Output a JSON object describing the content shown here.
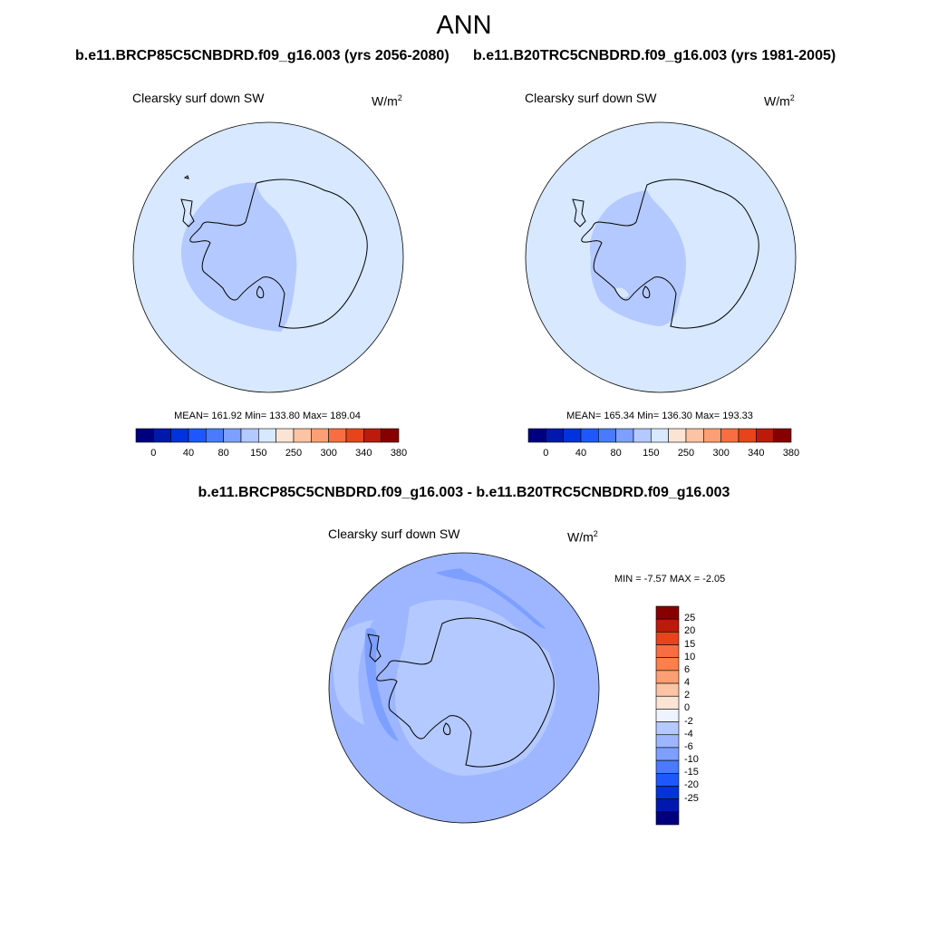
{
  "title": "ANN",
  "panels": [
    {
      "case_title": "b.e11.BRCP85C5CNBDRD.f09_g16.003 (yrs 2056-2080)",
      "variable": "Clearsky surf down SW",
      "units_base": "W/m",
      "units_exp": "2",
      "stats": "MEAN= 161.92  Min= 133.80  Max= 189.04"
    },
    {
      "case_title": "b.e11.B20TRC5CNBDRD.f09_g16.003 (yrs 1981-2005)",
      "variable": "Clearsky surf down SW",
      "units_base": "W/m",
      "units_exp": "2",
      "stats": "MEAN= 165.34  Min= 136.30  Max= 193.33"
    }
  ],
  "colorbar_horizontal": {
    "colors": [
      "#00007f",
      "#0019ad",
      "#0033dd",
      "#1f57ff",
      "#4a7bff",
      "#7d9fff",
      "#b4c9ff",
      "#d7e8ff",
      "#fbe4d4",
      "#fcc4a4",
      "#fc9f74",
      "#f96d43",
      "#e8441c",
      "#bc1a0b",
      "#870000"
    ],
    "tick_labels": [
      "0",
      "40",
      "80",
      "150",
      "250",
      "300",
      "340",
      "380"
    ]
  },
  "diff_panel": {
    "case_title": "b.e11.BRCP85C5CNBDRD.f09_g16.003 - b.e11.B20TRC5CNBDRD.f09_g16.003",
    "variable": "Clearsky surf down SW",
    "units_base": "W/m",
    "units_exp": "2",
    "stats": "MIN =  -7.57 MAX =  -2.05"
  },
  "colorbar_vertical": {
    "colors_top_to_bottom": [
      "#870000",
      "#bc1a0b",
      "#e8441c",
      "#f96d43",
      "#fc7f4c",
      "#fc9f74",
      "#fcc4a4",
      "#fbe4d4",
      "#eef3ff",
      "#b4c9ff",
      "#9db6ff",
      "#7d9fff",
      "#4a7bff",
      "#1f57ff",
      "#0033dd",
      "#0019ad",
      "#00007f"
    ],
    "tick_labels": [
      "25",
      "20",
      "15",
      "10",
      "6",
      "4",
      "2",
      "0",
      "-2",
      "-4",
      "-6",
      "-10",
      "-15",
      "-20",
      "-25"
    ]
  },
  "map_colors": {
    "ocean_light": "#d7e8ff",
    "pale_band": "#b4c9ff",
    "diff_bg": "#b4c9ff",
    "diff_mid": "#9db6ff",
    "diff_dark": "#7d9fff",
    "diff_darkest": "#4a7bff"
  }
}
